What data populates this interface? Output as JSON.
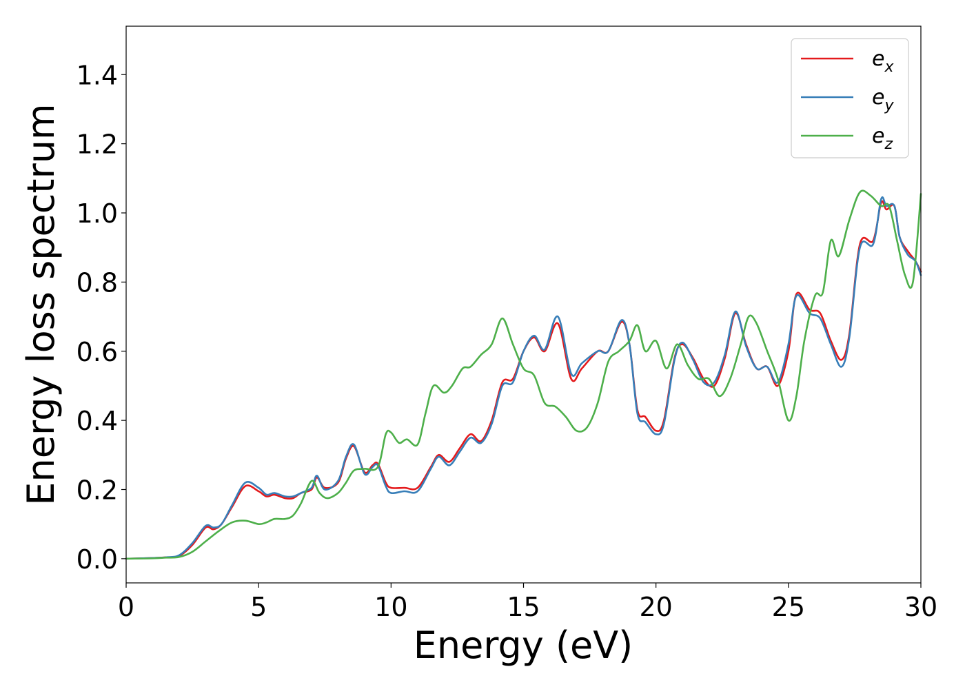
{
  "chart_data": {
    "type": "line",
    "xlabel": "Energy (eV)",
    "ylabel": "Energy loss spectrum",
    "xlim": [
      0,
      30
    ],
    "ylim": [
      -0.07,
      1.54
    ],
    "xticks": [
      0,
      5,
      10,
      15,
      20,
      25,
      30
    ],
    "xtick_labels": [
      "0",
      "5",
      "10",
      "15",
      "20",
      "25",
      "30"
    ],
    "yticks": [
      0.0,
      0.2,
      0.4,
      0.6,
      0.8,
      1.0,
      1.2,
      1.4
    ],
    "ytick_labels": [
      "0.0",
      "0.2",
      "0.4",
      "0.6",
      "0.8",
      "1.0",
      "1.2",
      "1.4"
    ],
    "grid": false,
    "legend_position": "top-right",
    "series": [
      {
        "name": "e",
        "subscript": "x",
        "color": "#e41a1c",
        "x": [
          0,
          1,
          1.5,
          2,
          2.5,
          3,
          3.3,
          3.6,
          4,
          4.5,
          5,
          5.3,
          5.6,
          6,
          6.3,
          6.6,
          7,
          7.2,
          7.5,
          8,
          8.3,
          8.6,
          9,
          9.3,
          9.5,
          9.8,
          10,
          10.5,
          11,
          11.5,
          11.8,
          12.2,
          12.6,
          13,
          13.4,
          13.8,
          14.2,
          14.6,
          15,
          15.4,
          15.8,
          16.3,
          16.8,
          17.2,
          17.8,
          18.2,
          18.7,
          19,
          19.3,
          19.6,
          20,
          20.3,
          20.7,
          21,
          21.4,
          21.8,
          22.2,
          22.6,
          23,
          23.4,
          23.8,
          24.2,
          24.6,
          25,
          25.3,
          25.8,
          26.2,
          26.6,
          27,
          27.3,
          27.7,
          28.2,
          28.5,
          28.7,
          29,
          29.2,
          29.5,
          29.8,
          30
        ],
        "y": [
          0.0,
          0.002,
          0.004,
          0.008,
          0.04,
          0.09,
          0.085,
          0.1,
          0.15,
          0.21,
          0.195,
          0.18,
          0.185,
          0.175,
          0.175,
          0.19,
          0.2,
          0.235,
          0.205,
          0.22,
          0.29,
          0.325,
          0.25,
          0.27,
          0.275,
          0.22,
          0.205,
          0.205,
          0.205,
          0.265,
          0.3,
          0.28,
          0.32,
          0.36,
          0.34,
          0.4,
          0.51,
          0.52,
          0.6,
          0.64,
          0.6,
          0.68,
          0.52,
          0.55,
          0.6,
          0.6,
          0.685,
          0.62,
          0.43,
          0.41,
          0.37,
          0.4,
          0.58,
          0.62,
          0.58,
          0.52,
          0.5,
          0.58,
          0.71,
          0.62,
          0.55,
          0.555,
          0.5,
          0.6,
          0.765,
          0.72,
          0.71,
          0.63,
          0.575,
          0.65,
          0.91,
          0.92,
          1.03,
          1.01,
          1.02,
          0.93,
          0.89,
          0.86,
          0.83
        ]
      },
      {
        "name": "e",
        "subscript": "y",
        "color": "#377eb8",
        "x": [
          0,
          1,
          1.5,
          2,
          2.5,
          3,
          3.3,
          3.6,
          4,
          4.5,
          5,
          5.3,
          5.6,
          6,
          6.3,
          6.6,
          7,
          7.2,
          7.5,
          8,
          8.3,
          8.6,
          9,
          9.3,
          9.5,
          9.8,
          10,
          10.5,
          11,
          11.5,
          11.8,
          12.2,
          12.6,
          13,
          13.4,
          13.8,
          14.2,
          14.6,
          15,
          15.4,
          15.8,
          16.3,
          16.8,
          17.2,
          17.8,
          18.2,
          18.7,
          19,
          19.3,
          19.6,
          20,
          20.3,
          20.7,
          21,
          21.4,
          21.8,
          22.2,
          22.6,
          23,
          23.4,
          23.8,
          24.2,
          24.6,
          25,
          25.3,
          25.8,
          26.2,
          26.6,
          27,
          27.3,
          27.7,
          28.2,
          28.5,
          28.7,
          29,
          29.2,
          29.5,
          29.8,
          30
        ],
        "y": [
          0.0,
          0.002,
          0.004,
          0.01,
          0.045,
          0.095,
          0.09,
          0.1,
          0.155,
          0.22,
          0.205,
          0.185,
          0.19,
          0.18,
          0.18,
          0.19,
          0.205,
          0.24,
          0.2,
          0.225,
          0.295,
          0.33,
          0.245,
          0.265,
          0.27,
          0.21,
          0.19,
          0.195,
          0.195,
          0.26,
          0.295,
          0.27,
          0.31,
          0.35,
          0.335,
          0.39,
          0.5,
          0.51,
          0.6,
          0.645,
          0.605,
          0.7,
          0.535,
          0.565,
          0.6,
          0.6,
          0.69,
          0.62,
          0.42,
          0.395,
          0.36,
          0.39,
          0.575,
          0.625,
          0.575,
          0.51,
          0.51,
          0.59,
          0.715,
          0.615,
          0.55,
          0.555,
          0.51,
          0.62,
          0.76,
          0.71,
          0.695,
          0.62,
          0.555,
          0.64,
          0.9,
          0.91,
          1.04,
          1.02,
          1.02,
          0.93,
          0.88,
          0.86,
          0.82
        ]
      },
      {
        "name": "e",
        "subscript": "z",
        "color": "#4daf4a",
        "x": [
          0,
          1,
          1.5,
          2,
          2.5,
          3,
          3.5,
          4,
          4.5,
          5,
          5.3,
          5.6,
          6,
          6.3,
          6.6,
          7,
          7.3,
          7.6,
          8,
          8.3,
          8.6,
          9,
          9.5,
          9.8,
          10,
          10.3,
          10.6,
          11,
          11.3,
          11.6,
          12,
          12.3,
          12.7,
          13,
          13.4,
          13.8,
          14.2,
          14.6,
          15,
          15.4,
          15.8,
          16.2,
          16.6,
          17,
          17.4,
          17.8,
          18.2,
          18.6,
          19,
          19.3,
          19.6,
          20,
          20.4,
          20.8,
          21.2,
          21.6,
          22,
          22.4,
          22.8,
          23.2,
          23.5,
          23.8,
          24.2,
          24.6,
          25,
          25.3,
          25.6,
          26,
          26.3,
          26.6,
          26.9,
          27.3,
          27.7,
          28.1,
          28.5,
          28.8,
          29.1,
          29.4,
          29.7,
          30
        ],
        "y": [
          0.0,
          0.001,
          0.003,
          0.005,
          0.02,
          0.05,
          0.08,
          0.105,
          0.11,
          0.1,
          0.105,
          0.115,
          0.115,
          0.125,
          0.16,
          0.225,
          0.19,
          0.175,
          0.19,
          0.22,
          0.255,
          0.26,
          0.265,
          0.36,
          0.365,
          0.335,
          0.345,
          0.33,
          0.42,
          0.5,
          0.48,
          0.5,
          0.55,
          0.555,
          0.59,
          0.62,
          0.695,
          0.62,
          0.55,
          0.53,
          0.45,
          0.44,
          0.41,
          0.37,
          0.38,
          0.45,
          0.57,
          0.6,
          0.63,
          0.675,
          0.6,
          0.63,
          0.55,
          0.62,
          0.56,
          0.52,
          0.52,
          0.47,
          0.52,
          0.62,
          0.7,
          0.68,
          0.6,
          0.52,
          0.4,
          0.47,
          0.63,
          0.76,
          0.77,
          0.92,
          0.875,
          0.98,
          1.06,
          1.05,
          1.02,
          1.02,
          0.92,
          0.82,
          0.8,
          1.055
        ]
      }
    ]
  }
}
